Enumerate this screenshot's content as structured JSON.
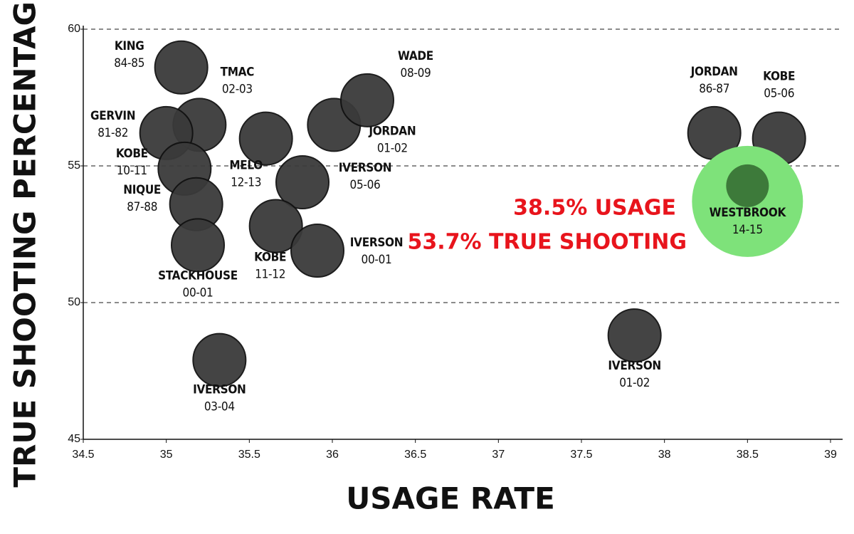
{
  "chart_data": {
    "type": "scatter",
    "x_label": "USAGE RATE",
    "y_label": "TRUE SHOOTING PERCENTAGE",
    "xlim": [
      34.5,
      39
    ],
    "ylim": [
      45,
      60
    ],
    "xticks": [
      34.5,
      35,
      35.5,
      36,
      36.5,
      37,
      37.5,
      38,
      38.5,
      39
    ],
    "yticks": [
      45,
      50,
      55,
      60
    ],
    "grid": true,
    "color": "#3a3a3a",
    "points": [
      {
        "name": "KING",
        "season": "84-85",
        "x": 35.09,
        "y": 58.6
      },
      {
        "name": "TMAC",
        "season": "02-03",
        "x": 35.2,
        "y": 56.5
      },
      {
        "name": "GERVIN",
        "season": "81-82",
        "x": 35.0,
        "y": 56.2
      },
      {
        "name": "KOBE",
        "season": "10-11",
        "x": 35.11,
        "y": 54.9
      },
      {
        "name": "NIQUE",
        "season": "87-88",
        "x": 35.18,
        "y": 53.6
      },
      {
        "name": "STACKHOUSE",
        "season": "00-01",
        "x": 35.19,
        "y": 52.1
      },
      {
        "name": "MELO",
        "season": "12-13",
        "x": 35.6,
        "y": 56.0
      },
      {
        "name": "JORDAN",
        "season": "01-02",
        "x": 36.01,
        "y": 56.5
      },
      {
        "name": "WADE",
        "season": "08-09",
        "x": 36.21,
        "y": 57.4
      },
      {
        "name": "IVERSON",
        "season": "05-06",
        "x": 35.82,
        "y": 54.4
      },
      {
        "name": "KOBE",
        "season": "11-12",
        "x": 35.66,
        "y": 52.8
      },
      {
        "name": "IVERSON",
        "season": "00-01",
        "x": 35.91,
        "y": 51.9
      },
      {
        "name": "IVERSON",
        "season": "03-04",
        "x": 35.32,
        "y": 47.9
      },
      {
        "name": "IVERSON",
        "season": "01-02",
        "x": 37.82,
        "y": 48.8
      },
      {
        "name": "JORDAN",
        "season": "86-87",
        "x": 38.3,
        "y": 56.2
      },
      {
        "name": "KOBE",
        "season": "05-06",
        "x": 38.69,
        "y": 56.0
      },
      {
        "name": "WESTBROOK",
        "season": "14-15",
        "x": 38.5,
        "y": 53.7,
        "color": "#7ee27a"
      }
    ],
    "annotations": [
      "38.5% USAGE",
      "53.7% TRUE SHOOTING"
    ]
  }
}
